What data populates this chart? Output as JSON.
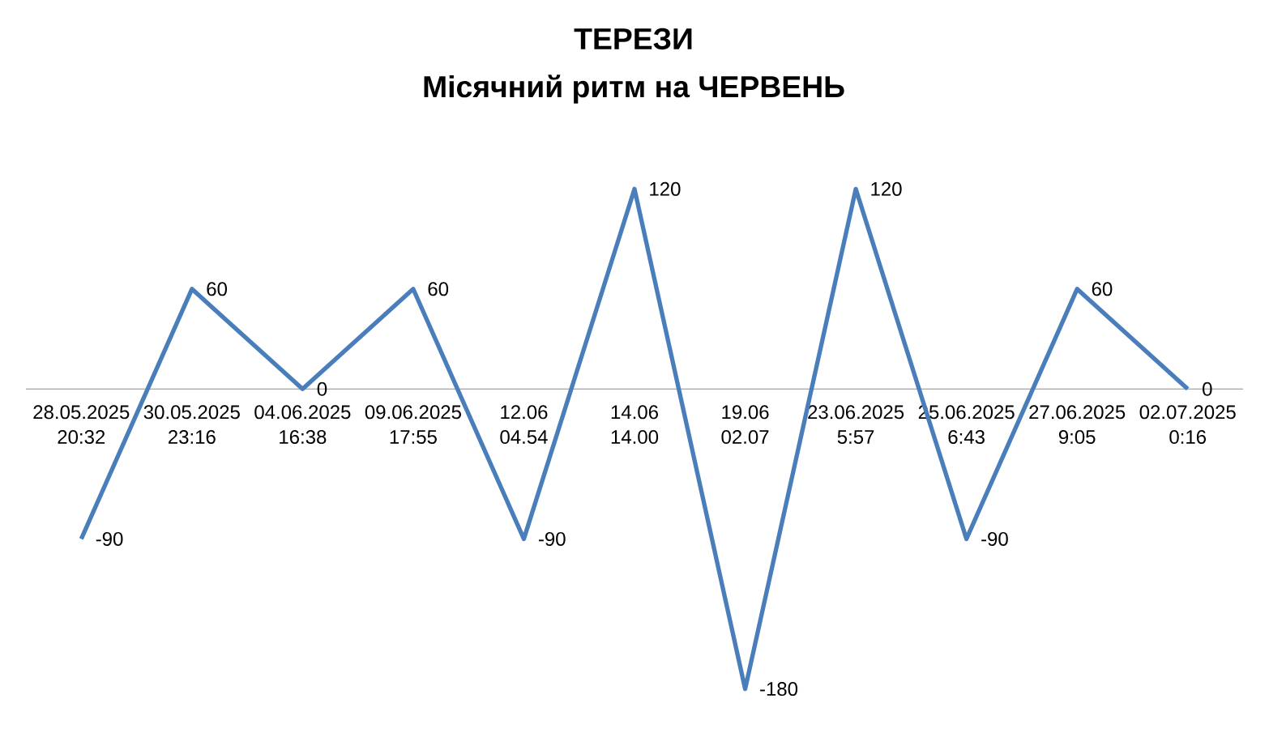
{
  "chart_data": {
    "type": "line",
    "title": "ТЕРЕЗИ",
    "subtitle": "Місячний ритм на ЧЕРВЕНЬ",
    "categories": [
      "28.05.2025 20:32",
      "30.05.2025 23:16",
      "04.06.2025 16:38",
      "09.06.2025 17:55",
      "12.06 04.54",
      "14.06 14.00",
      "19.06 02.07",
      "23.06.2025 5:57",
      "25.06.2025 6:43",
      "27.06.2025 9:05",
      "02.07.2025 0:16"
    ],
    "series": [
      {
        "color": "#4a7ebb",
        "values": [
          -90,
          60,
          0,
          60,
          -90,
          120,
          -180,
          120,
          -90,
          60,
          0
        ]
      }
    ],
    "data_labels": true,
    "tick_labels": "x",
    "marker": "none",
    "line_style": "solid"
  }
}
